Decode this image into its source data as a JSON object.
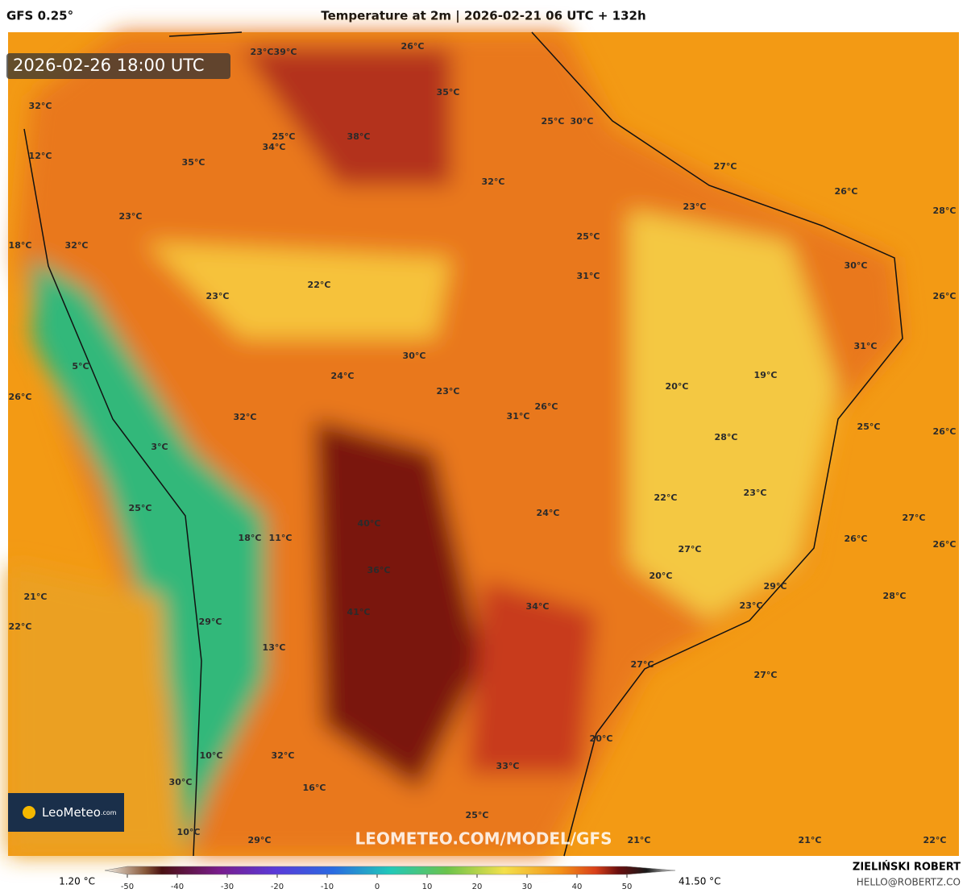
{
  "header": {
    "model": "GFS 0.25°",
    "title": "Temperature at 2m | 2026-02-21 06 UTC + 132h"
  },
  "valid_time": "2026-02-26 18:00 UTC",
  "watermark": "LEOMETEO.COM/MODEL/GFS",
  "logo": {
    "name": "LeoMeteo",
    "suffix": ".com"
  },
  "map_labels": [
    "23°C",
    "39°C",
    "26°C",
    "35°C",
    "32°C",
    "25°C",
    "34°C",
    "38°C",
    "25°C",
    "30°C",
    "12°C",
    "35°C",
    "32°C",
    "27°C",
    "26°C",
    "23°C",
    "28°C",
    "23°C",
    "18°C",
    "32°C",
    "25°C",
    "30°C",
    "22°C",
    "23°C",
    "31°C",
    "26°C",
    "31°C",
    "30°C",
    "5°C",
    "19°C",
    "24°C",
    "20°C",
    "23°C",
    "26°C",
    "26°C",
    "31°C",
    "32°C",
    "25°C",
    "26°C",
    "28°C",
    "3°C",
    "23°C",
    "22°C",
    "25°C",
    "24°C",
    "27°C",
    "40°C",
    "18°C",
    "11°C",
    "26°C",
    "26°C",
    "27°C",
    "36°C",
    "20°C",
    "29°C",
    "21°C",
    "34°C",
    "28°C",
    "23°C",
    "41°C",
    "29°C",
    "22°C",
    "13°C",
    "27°C",
    "27°C",
    "20°C",
    "10°C",
    "32°C",
    "33°C",
    "30°C",
    "16°C",
    "25°C",
    "10°C",
    "29°C",
    "21°C",
    "21°C",
    "22°C"
  ],
  "colorbar": {
    "min_label": "1.20 °C",
    "max_label": "41.50 °C",
    "range": [
      -50,
      50
    ],
    "ticks": [
      -50,
      -40,
      -30,
      -20,
      -10,
      0,
      10,
      20,
      30,
      40,
      50
    ]
  },
  "author": {
    "name": "ZIELIŃSKI ROBERT",
    "email": "HELLO@ROBERTZ.CO"
  }
}
